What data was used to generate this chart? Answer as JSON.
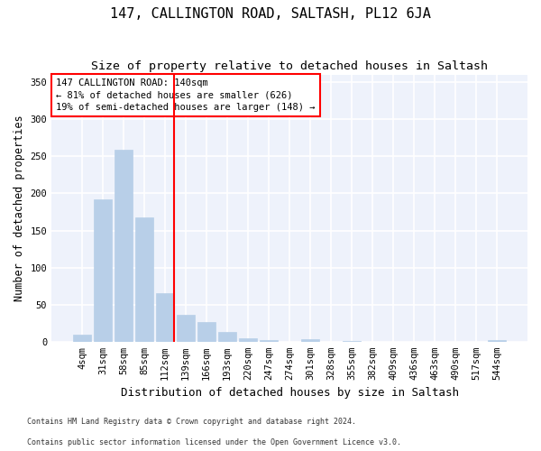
{
  "title": "147, CALLINGTON ROAD, SALTASH, PL12 6JA",
  "subtitle": "Size of property relative to detached houses in Saltash",
  "xlabel": "Distribution of detached houses by size in Saltash",
  "ylabel": "Number of detached properties",
  "bar_color": "#b8cfe8",
  "bar_edge_color": "#b8cfe8",
  "background_color": "#eef2fb",
  "grid_color": "#ffffff",
  "categories": [
    "4sqm",
    "31sqm",
    "58sqm",
    "85sqm",
    "112sqm",
    "139sqm",
    "166sqm",
    "193sqm",
    "220sqm",
    "247sqm",
    "274sqm",
    "301sqm",
    "328sqm",
    "355sqm",
    "382sqm",
    "409sqm",
    "436sqm",
    "463sqm",
    "490sqm",
    "517sqm",
    "544sqm"
  ],
  "values": [
    10,
    192,
    259,
    168,
    65,
    36,
    26,
    13,
    5,
    2,
    0,
    3,
    0,
    1,
    0,
    0,
    0,
    0,
    0,
    0,
    2
  ],
  "ylim": [
    0,
    360
  ],
  "yticks": [
    0,
    50,
    100,
    150,
    200,
    250,
    300,
    350
  ],
  "annotation_text": "147 CALLINGTON ROAD: 140sqm\n← 81% of detached houses are smaller (626)\n19% of semi-detached houses are larger (148) →",
  "vline_x_index": 4.45,
  "footer_line1": "Contains HM Land Registry data © Crown copyright and database right 2024.",
  "footer_line2": "Contains public sector information licensed under the Open Government Licence v3.0.",
  "title_fontsize": 11,
  "subtitle_fontsize": 9.5,
  "xlabel_fontsize": 9,
  "ylabel_fontsize": 8.5,
  "tick_fontsize": 7.5,
  "annotation_fontsize": 7.5,
  "footer_fontsize": 6
}
